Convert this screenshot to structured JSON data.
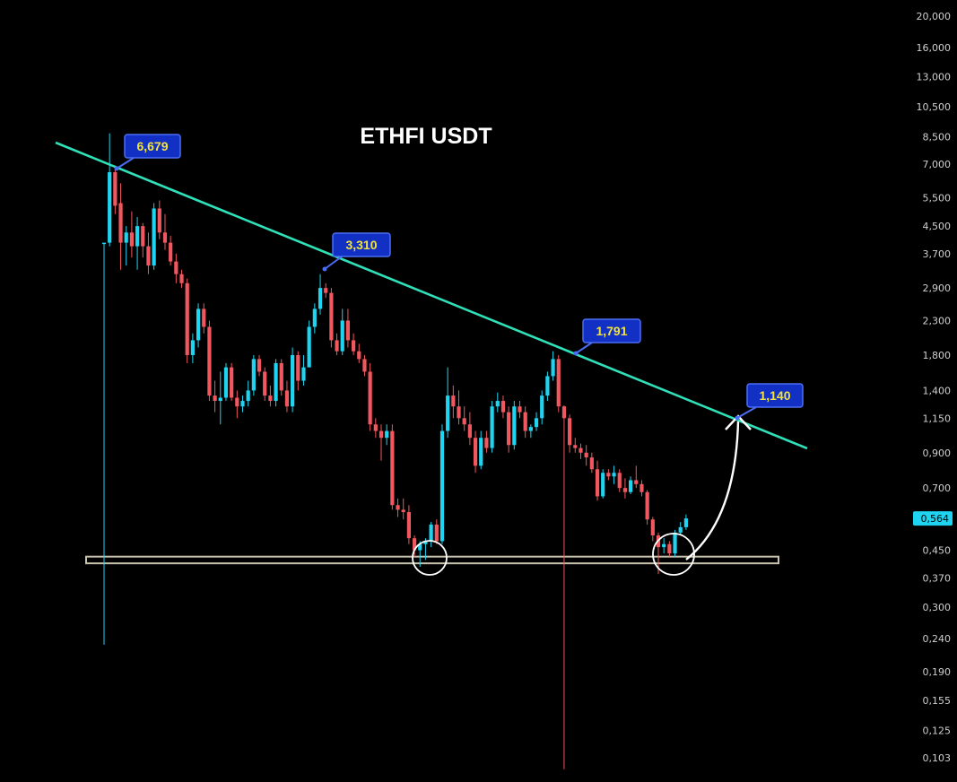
{
  "chart_data": {
    "type": "candlestick",
    "title": "ETHFI USDT",
    "y_scale": "log",
    "ylim": [
      0.098,
      22000
    ],
    "y_ticks": [
      20000,
      16000,
      13000,
      10500,
      8500,
      7000,
      5500,
      4500,
      3700,
      2900,
      2300,
      1800,
      1400,
      1150,
      900,
      700,
      450,
      370,
      300,
      240,
      190,
      155,
      125,
      103
    ],
    "y_tick_labels": [
      "20,000",
      "16,000",
      "13,000",
      "10,500",
      "8,500",
      "7,000",
      "5,500",
      "4,500",
      "3,700",
      "2,900",
      "2,300",
      "1,800",
      "1,400",
      "1,150",
      "0,900",
      "0,700",
      "0,450",
      "0,370",
      "0,300",
      "0,240",
      "0,190",
      "0,155",
      "0,125",
      "0,103"
    ],
    "last_price_label": "0,564",
    "last_price": 564,
    "candles": [
      {
        "o": 4000,
        "h": 4000,
        "l": 230,
        "c": 4000,
        "up": true
      },
      {
        "o": 4000,
        "h": 8700,
        "l": 3900,
        "c": 6600,
        "up": true
      },
      {
        "o": 6600,
        "h": 6900,
        "l": 4900,
        "c": 5200,
        "up": false
      },
      {
        "o": 5300,
        "h": 6100,
        "l": 3300,
        "c": 4000,
        "up": false
      },
      {
        "o": 4000,
        "h": 4500,
        "l": 3400,
        "c": 4300,
        "up": true
      },
      {
        "o": 4300,
        "h": 5000,
        "l": 3600,
        "c": 3900,
        "up": false
      },
      {
        "o": 3900,
        "h": 4800,
        "l": 3300,
        "c": 4500,
        "up": true
      },
      {
        "o": 4500,
        "h": 4600,
        "l": 3600,
        "c": 3900,
        "up": false
      },
      {
        "o": 3900,
        "h": 4300,
        "l": 3200,
        "c": 3400,
        "up": false
      },
      {
        "o": 3400,
        "h": 5300,
        "l": 3300,
        "c": 5100,
        "up": true
      },
      {
        "o": 5100,
        "h": 5400,
        "l": 4100,
        "c": 4300,
        "up": false
      },
      {
        "o": 4300,
        "h": 4900,
        "l": 3800,
        "c": 4000,
        "up": false
      },
      {
        "o": 4000,
        "h": 4200,
        "l": 3400,
        "c": 3500,
        "up": false
      },
      {
        "o": 3500,
        "h": 3700,
        "l": 3000,
        "c": 3200,
        "up": false
      },
      {
        "o": 3200,
        "h": 3300,
        "l": 2900,
        "c": 3000,
        "up": false
      },
      {
        "o": 3000,
        "h": 3100,
        "l": 1700,
        "c": 1800,
        "up": false
      },
      {
        "o": 1800,
        "h": 2100,
        "l": 1700,
        "c": 2000,
        "up": true
      },
      {
        "o": 2000,
        "h": 2600,
        "l": 1900,
        "c": 2500,
        "up": true
      },
      {
        "o": 2500,
        "h": 2600,
        "l": 2100,
        "c": 2200,
        "up": false
      },
      {
        "o": 2200,
        "h": 2300,
        "l": 1300,
        "c": 1350,
        "up": false
      },
      {
        "o": 1350,
        "h": 1500,
        "l": 1200,
        "c": 1300,
        "up": false
      },
      {
        "o": 1300,
        "h": 1600,
        "l": 1100,
        "c": 1330,
        "up": true
      },
      {
        "o": 1330,
        "h": 1700,
        "l": 1300,
        "c": 1650,
        "up": true
      },
      {
        "o": 1650,
        "h": 1700,
        "l": 1300,
        "c": 1330,
        "up": false
      },
      {
        "o": 1330,
        "h": 1400,
        "l": 1150,
        "c": 1250,
        "up": false
      },
      {
        "o": 1250,
        "h": 1350,
        "l": 1200,
        "c": 1300,
        "up": true
      },
      {
        "o": 1300,
        "h": 1500,
        "l": 1250,
        "c": 1400,
        "up": true
      },
      {
        "o": 1400,
        "h": 1800,
        "l": 1350,
        "c": 1750,
        "up": true
      },
      {
        "o": 1750,
        "h": 1800,
        "l": 1550,
        "c": 1600,
        "up": false
      },
      {
        "o": 1600,
        "h": 1650,
        "l": 1300,
        "c": 1350,
        "up": false
      },
      {
        "o": 1350,
        "h": 1450,
        "l": 1250,
        "c": 1300,
        "up": false
      },
      {
        "o": 1300,
        "h": 1750,
        "l": 1250,
        "c": 1700,
        "up": true
      },
      {
        "o": 1700,
        "h": 1750,
        "l": 1350,
        "c": 1400,
        "up": false
      },
      {
        "o": 1400,
        "h": 1500,
        "l": 1200,
        "c": 1250,
        "up": false
      },
      {
        "o": 1250,
        "h": 1900,
        "l": 1200,
        "c": 1800,
        "up": true
      },
      {
        "o": 1800,
        "h": 1850,
        "l": 1400,
        "c": 1500,
        "up": false
      },
      {
        "o": 1500,
        "h": 1800,
        "l": 1450,
        "c": 1650,
        "up": true
      },
      {
        "o": 1650,
        "h": 2300,
        "l": 1650,
        "c": 2200,
        "up": true
      },
      {
        "o": 2200,
        "h": 2600,
        "l": 2100,
        "c": 2500,
        "up": true
      },
      {
        "o": 2500,
        "h": 3200,
        "l": 2400,
        "c": 2900,
        "up": true
      },
      {
        "o": 2900,
        "h": 3000,
        "l": 2700,
        "c": 2800,
        "up": false
      },
      {
        "o": 2800,
        "h": 2900,
        "l": 1900,
        "c": 2000,
        "up": false
      },
      {
        "o": 2000,
        "h": 2100,
        "l": 1800,
        "c": 1850,
        "up": false
      },
      {
        "o": 1850,
        "h": 2500,
        "l": 1800,
        "c": 2300,
        "up": true
      },
      {
        "o": 2300,
        "h": 2500,
        "l": 1900,
        "c": 2000,
        "up": false
      },
      {
        "o": 2000,
        "h": 2100,
        "l": 1800,
        "c": 1850,
        "up": false
      },
      {
        "o": 1850,
        "h": 1950,
        "l": 1700,
        "c": 1750,
        "up": false
      },
      {
        "o": 1750,
        "h": 1800,
        "l": 1550,
        "c": 1600,
        "up": false
      },
      {
        "o": 1600,
        "h": 1700,
        "l": 1050,
        "c": 1100,
        "up": false
      },
      {
        "o": 1100,
        "h": 1150,
        "l": 1000,
        "c": 1050,
        "up": false
      },
      {
        "o": 1050,
        "h": 1100,
        "l": 850,
        "c": 1000,
        "up": false
      },
      {
        "o": 1000,
        "h": 1100,
        "l": 950,
        "c": 1050,
        "up": true
      },
      {
        "o": 1050,
        "h": 1100,
        "l": 600,
        "c": 620,
        "up": false
      },
      {
        "o": 620,
        "h": 650,
        "l": 570,
        "c": 600,
        "up": false
      },
      {
        "o": 600,
        "h": 650,
        "l": 560,
        "c": 590,
        "up": false
      },
      {
        "o": 590,
        "h": 620,
        "l": 470,
        "c": 490,
        "up": false
      },
      {
        "o": 490,
        "h": 500,
        "l": 430,
        "c": 450,
        "up": false
      },
      {
        "o": 450,
        "h": 480,
        "l": 400,
        "c": 470,
        "up": true
      },
      {
        "o": 470,
        "h": 490,
        "l": 420,
        "c": 480,
        "up": true
      },
      {
        "o": 480,
        "h": 550,
        "l": 460,
        "c": 540,
        "up": true
      },
      {
        "o": 540,
        "h": 560,
        "l": 470,
        "c": 480,
        "up": false
      },
      {
        "o": 480,
        "h": 1100,
        "l": 470,
        "c": 1050,
        "up": true
      },
      {
        "o": 1050,
        "h": 1650,
        "l": 1000,
        "c": 1350,
        "up": true
      },
      {
        "o": 1350,
        "h": 1450,
        "l": 1150,
        "c": 1250,
        "up": false
      },
      {
        "o": 1250,
        "h": 1400,
        "l": 1100,
        "c": 1150,
        "up": false
      },
      {
        "o": 1150,
        "h": 1250,
        "l": 1050,
        "c": 1100,
        "up": false
      },
      {
        "o": 1100,
        "h": 1200,
        "l": 950,
        "c": 1000,
        "up": false
      },
      {
        "o": 1000,
        "h": 1050,
        "l": 780,
        "c": 820,
        "up": false
      },
      {
        "o": 820,
        "h": 1050,
        "l": 800,
        "c": 1000,
        "up": true
      },
      {
        "o": 1000,
        "h": 1050,
        "l": 900,
        "c": 930,
        "up": false
      },
      {
        "o": 930,
        "h": 1300,
        "l": 900,
        "c": 1250,
        "up": true
      },
      {
        "o": 1250,
        "h": 1380,
        "l": 1200,
        "c": 1300,
        "up": true
      },
      {
        "o": 1300,
        "h": 1350,
        "l": 1150,
        "c": 1200,
        "up": false
      },
      {
        "o": 1200,
        "h": 1250,
        "l": 900,
        "c": 950,
        "up": false
      },
      {
        "o": 950,
        "h": 1300,
        "l": 920,
        "c": 1250,
        "up": true
      },
      {
        "o": 1250,
        "h": 1300,
        "l": 1150,
        "c": 1200,
        "up": false
      },
      {
        "o": 1200,
        "h": 1250,
        "l": 1000,
        "c": 1050,
        "up": false
      },
      {
        "o": 1050,
        "h": 1100,
        "l": 1000,
        "c": 1080,
        "up": true
      },
      {
        "o": 1080,
        "h": 1200,
        "l": 1050,
        "c": 1150,
        "up": true
      },
      {
        "o": 1150,
        "h": 1400,
        "l": 1100,
        "c": 1350,
        "up": true
      },
      {
        "o": 1350,
        "h": 1600,
        "l": 1300,
        "c": 1550,
        "up": true
      },
      {
        "o": 1550,
        "h": 1850,
        "l": 1500,
        "c": 1750,
        "up": true
      },
      {
        "o": 1750,
        "h": 1800,
        "l": 1200,
        "c": 1250,
        "up": false
      },
      {
        "o": 1250,
        "h": 1260,
        "l": 95,
        "c": 1150,
        "up": false
      },
      {
        "o": 1150,
        "h": 1180,
        "l": 900,
        "c": 950,
        "up": false
      },
      {
        "o": 950,
        "h": 1000,
        "l": 900,
        "c": 930,
        "up": false
      },
      {
        "o": 930,
        "h": 960,
        "l": 860,
        "c": 900,
        "up": false
      },
      {
        "o": 900,
        "h": 950,
        "l": 820,
        "c": 870,
        "up": false
      },
      {
        "o": 870,
        "h": 900,
        "l": 780,
        "c": 800,
        "up": false
      },
      {
        "o": 800,
        "h": 850,
        "l": 640,
        "c": 660,
        "up": false
      },
      {
        "o": 660,
        "h": 800,
        "l": 650,
        "c": 780,
        "up": true
      },
      {
        "o": 780,
        "h": 800,
        "l": 740,
        "c": 760,
        "up": false
      },
      {
        "o": 760,
        "h": 820,
        "l": 720,
        "c": 780,
        "up": true
      },
      {
        "o": 780,
        "h": 800,
        "l": 680,
        "c": 700,
        "up": false
      },
      {
        "o": 700,
        "h": 750,
        "l": 650,
        "c": 680,
        "up": false
      },
      {
        "o": 680,
        "h": 760,
        "l": 670,
        "c": 740,
        "up": true
      },
      {
        "o": 740,
        "h": 820,
        "l": 700,
        "c": 720,
        "up": false
      },
      {
        "o": 720,
        "h": 740,
        "l": 660,
        "c": 680,
        "up": false
      },
      {
        "o": 680,
        "h": 690,
        "l": 540,
        "c": 560,
        "up": false
      },
      {
        "o": 560,
        "h": 570,
        "l": 480,
        "c": 500,
        "up": false
      },
      {
        "o": 500,
        "h": 510,
        "l": 380,
        "c": 460,
        "up": false
      },
      {
        "o": 460,
        "h": 490,
        "l": 440,
        "c": 470,
        "up": true
      },
      {
        "o": 470,
        "h": 480,
        "l": 430,
        "c": 440,
        "up": false
      },
      {
        "o": 440,
        "h": 520,
        "l": 430,
        "c": 510,
        "up": true
      },
      {
        "o": 510,
        "h": 550,
        "l": 500,
        "c": 530,
        "up": true
      },
      {
        "o": 530,
        "h": 580,
        "l": 520,
        "c": 564,
        "up": true
      }
    ],
    "annotations": [
      {
        "label": "6,679",
        "value": 6679
      },
      {
        "label": "3,310",
        "value": 3310
      },
      {
        "label": "1,791",
        "value": 1791
      },
      {
        "label": "1,140",
        "value": 1140
      }
    ],
    "trendline": {
      "type": "descending resistance"
    },
    "support_zone": {
      "low": 410,
      "high": 430
    },
    "colors": {
      "up": "#1fd4f0",
      "down": "#f0575f",
      "trendline": "#2fe0b8",
      "support_zone": "#c9c3ae",
      "callout_bg": "#1330c4",
      "callout_border": "#4a6df5",
      "callout_text": "#f2e33c",
      "last_price_badge": "#1fd4f0",
      "axis_text": "#cfcfcf"
    }
  }
}
